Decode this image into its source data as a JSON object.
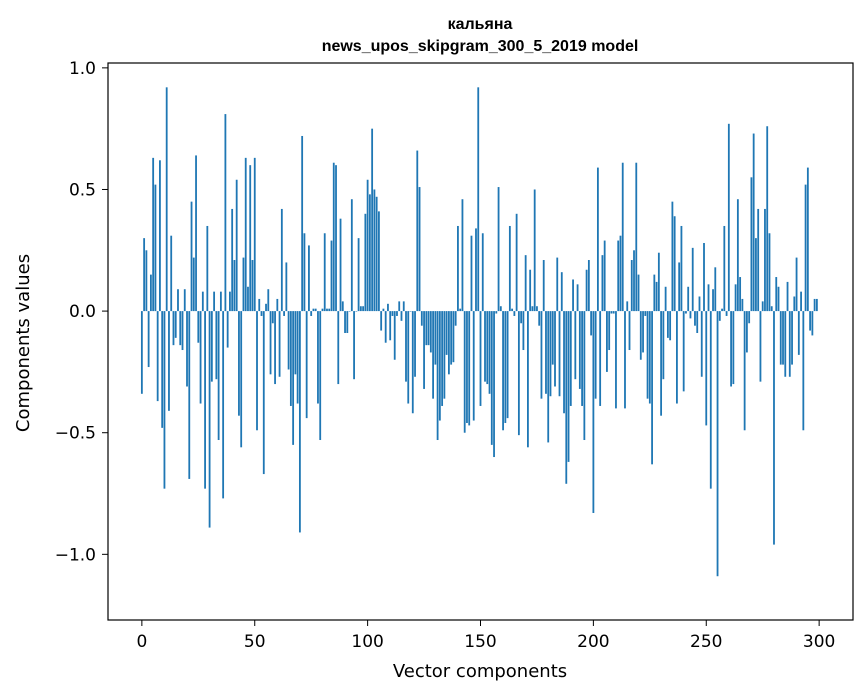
{
  "chart_data": {
    "type": "bar",
    "title": "кальяна",
    "subtitle": "news_upos_skipgram_300_5_2019 model",
    "xlabel": "Vector components",
    "ylabel": "Components values",
    "xlim": [
      -15,
      315
    ],
    "ylim": [
      -1.27,
      1.02
    ],
    "xticks": [
      0,
      50,
      100,
      150,
      200,
      250,
      300
    ],
    "xtick_labels": [
      "0",
      "50",
      "100",
      "150",
      "200",
      "250",
      "300"
    ],
    "yticks": [
      1.0,
      0.5,
      0.0,
      -0.5,
      -1.0
    ],
    "ytick_labels": [
      "1.0",
      "0.5",
      "0.0",
      "−0.5",
      "−1.0"
    ],
    "grid": false,
    "bar_color": "#1f77b4",
    "values": [
      -0.34,
      0.3,
      0.25,
      -0.23,
      0.15,
      0.63,
      0.52,
      -0.37,
      0.62,
      -0.48,
      -0.73,
      0.92,
      -0.41,
      0.31,
      -0.14,
      -0.11,
      0.09,
      -0.14,
      -0.16,
      0.09,
      -0.31,
      -0.69,
      0.45,
      0.22,
      0.64,
      -0.13,
      -0.38,
      0.08,
      -0.73,
      0.35,
      -0.89,
      -0.29,
      0.08,
      -0.28,
      -0.53,
      0.08,
      -0.77,
      0.81,
      -0.15,
      0.08,
      0.42,
      0.21,
      0.54,
      -0.43,
      -0.56,
      0.22,
      0.63,
      0.1,
      0.6,
      0.21,
      0.63,
      -0.49,
      0.05,
      -0.02,
      -0.67,
      0.03,
      0.09,
      -0.26,
      -0.05,
      -0.3,
      0.05,
      -0.27,
      0.42,
      -0.02,
      0.2,
      -0.24,
      -0.39,
      -0.55,
      -0.26,
      -0.38,
      -0.91,
      0.72,
      0.32,
      -0.44,
      0.27,
      -0.02,
      0.01,
      0.01,
      -0.38,
      -0.53,
      0.01,
      0.32,
      0.01,
      0.01,
      0.29,
      0.61,
      0.6,
      -0.3,
      0.38,
      0.04,
      -0.09,
      -0.09,
      0.0,
      0.46,
      -0.28,
      0.0,
      0.3,
      0.02,
      0.02,
      0.4,
      0.54,
      0.48,
      0.75,
      0.5,
      0.47,
      0.41,
      -0.08,
      0.01,
      -0.13,
      0.03,
      -0.12,
      -0.02,
      -0.2,
      -0.02,
      0.04,
      -0.04,
      0.04,
      -0.29,
      -0.38,
      0.0,
      -0.42,
      -0.27,
      0.66,
      0.51,
      -0.06,
      -0.32,
      -0.14,
      -0.14,
      -0.17,
      -0.36,
      -0.22,
      -0.53,
      -0.45,
      -0.39,
      -0.36,
      -0.18,
      -0.26,
      -0.22,
      -0.21,
      -0.06,
      0.35,
      0.01,
      0.46,
      -0.5,
      -0.46,
      -0.47,
      0.31,
      -0.45,
      0.34,
      0.92,
      -0.39,
      0.32,
      -0.29,
      -0.3,
      -0.34,
      -0.55,
      -0.6,
      -0.01,
      0.51,
      0.02,
      -0.49,
      -0.46,
      -0.44,
      0.35,
      0.01,
      -0.02,
      0.4,
      -0.51,
      -0.05,
      -0.16,
      0.23,
      -0.56,
      0.17,
      0.02,
      0.5,
      0.02,
      -0.06,
      -0.36,
      0.21,
      -0.34,
      -0.54,
      -0.35,
      -0.22,
      -0.31,
      0.22,
      -0.35,
      0.16,
      -0.42,
      -0.71,
      -0.62,
      -0.39,
      0.13,
      -0.28,
      0.11,
      -0.32,
      -0.39,
      -0.53,
      0.17,
      0.21,
      -0.1,
      -0.83,
      -0.36,
      0.59,
      -0.39,
      0.23,
      0.29,
      -0.25,
      -0.16,
      -0.01,
      -0.01,
      -0.4,
      0.29,
      0.31,
      0.61,
      -0.4,
      0.04,
      -0.16,
      0.21,
      0.25,
      0.61,
      0.15,
      -0.2,
      -0.17,
      -0.02,
      -0.36,
      -0.38,
      -0.63,
      0.15,
      0.12,
      0.24,
      -0.43,
      -0.28,
      0.1,
      -0.11,
      -0.12,
      0.45,
      0.39,
      -0.38,
      0.2,
      0.35,
      -0.33,
      -0.01,
      0.1,
      -0.03,
      0.26,
      -0.06,
      -0.09,
      0.06,
      -0.27,
      0.28,
      -0.47,
      0.11,
      -0.73,
      0.09,
      0.18,
      -1.09,
      -0.04,
      0.01,
      0.35,
      -0.02,
      0.77,
      -0.31,
      -0.3,
      0.11,
      0.46,
      0.14,
      0.05,
      -0.49,
      -0.17,
      -0.05,
      0.55,
      0.73,
      0.3,
      0.42,
      -0.29,
      0.04,
      0.42,
      0.76,
      0.32,
      0.02,
      -0.96,
      0.14,
      0.1,
      -0.22,
      -0.22,
      -0.27,
      0.12,
      -0.27,
      -0.22,
      0.06,
      0.22,
      -0.18,
      0.08,
      -0.49,
      0.52,
      0.59,
      -0.08,
      -0.1,
      0.05,
      0.05
    ]
  }
}
